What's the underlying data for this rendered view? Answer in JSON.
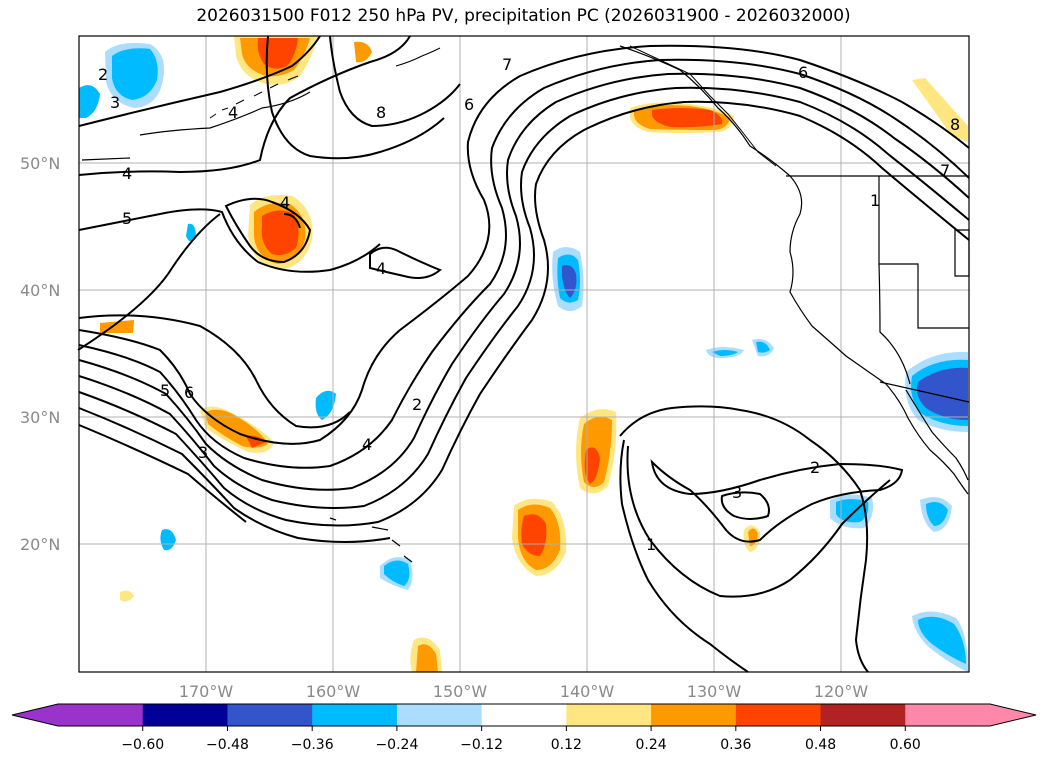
{
  "title": "2026031500 F012 250 hPa PV, precipitation PC (2026031900 - 2026032000)",
  "map": {
    "longitude_labels": [
      "170°W",
      "160°W",
      "150°W",
      "140°W",
      "130°W",
      "120°W"
    ],
    "latitude_labels": [
      "50°N",
      "40°N",
      "30°N",
      "20°N"
    ],
    "gridlines": true
  },
  "pv_contour_labels": [
    "2",
    "3",
    "4",
    "5",
    "4",
    "4",
    "8",
    "7",
    "6",
    "6",
    "1",
    "7",
    "8",
    "4",
    "5",
    "6",
    "3",
    "4",
    "2",
    "2",
    "3",
    "1"
  ],
  "colorbar": {
    "ticks": [
      "−0.60",
      "−0.48",
      "−0.36",
      "−0.24",
      "−0.12",
      "0.12",
      "0.24",
      "0.36",
      "0.48",
      "0.60"
    ],
    "colors": [
      "#9933cc",
      "#000099",
      "#3355cc",
      "#00bbff",
      "#aaddff",
      "#ffffff",
      "#ffe680",
      "#ff9900",
      "#ff4400",
      "#b22222",
      "#ff88aa"
    ],
    "extend": "both"
  },
  "colors": {
    "land_outline": "#000000",
    "grid": "#b0b0b0",
    "contour": "#000000"
  }
}
